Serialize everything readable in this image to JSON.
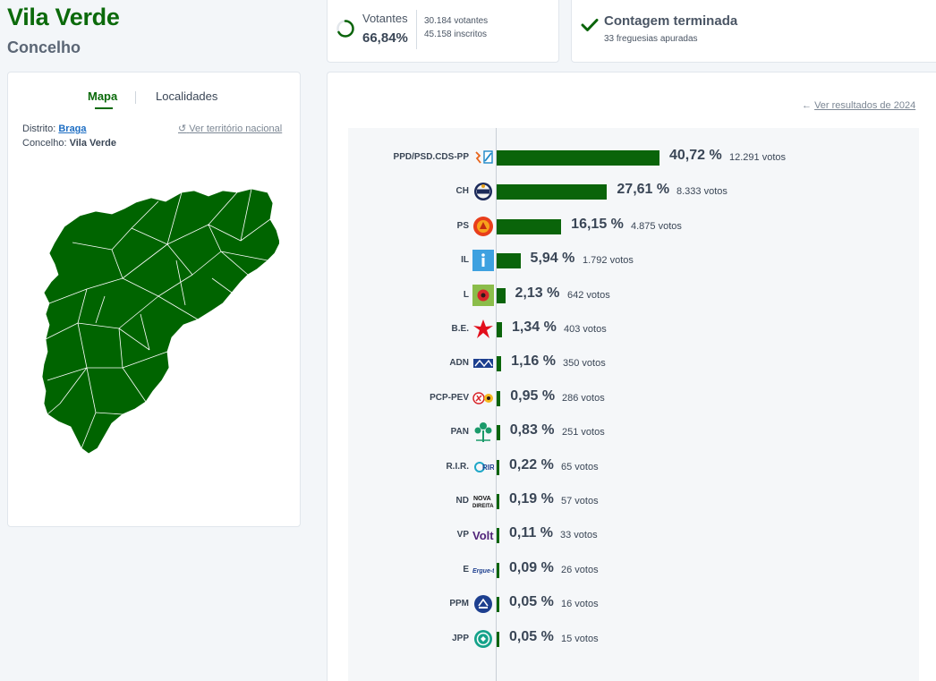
{
  "header": {
    "title": "Vila Verde",
    "subtitle": "Concelho"
  },
  "turnout": {
    "label": "Votantes",
    "percent": "66,84%",
    "percent_value": 66.84,
    "voters": "30.184 votantes",
    "registered": "45.158 inscritos"
  },
  "count_status": {
    "title": "Contagem terminada",
    "subtitle": "33 freguesias apuradas"
  },
  "map_card": {
    "tabs": [
      {
        "label": "Mapa",
        "active": true
      },
      {
        "label": "Localidades",
        "active": false
      }
    ],
    "district_label": "Distrito:",
    "district_value": "Braga",
    "municipality_label": "Concelho:",
    "municipality_value": "Vila Verde",
    "national_link": "Ver território nacional",
    "map_color": "#006400"
  },
  "results": {
    "previous_link": "Ver resultados de 2024",
    "bar_color": "#0a640a",
    "parties": [
      {
        "name": "PPD/PSD.CDS-PP",
        "percent": "40,72 %",
        "value": 40.72,
        "votes": "12.291 votos",
        "logo": "ad-logo"
      },
      {
        "name": "CH",
        "percent": "27,61 %",
        "value": 27.61,
        "votes": "8.333 votos",
        "logo": "chega-logo"
      },
      {
        "name": "PS",
        "percent": "16,15 %",
        "value": 16.15,
        "votes": "4.875 votos",
        "logo": "ps-logo"
      },
      {
        "name": "IL",
        "percent": "5,94 %",
        "value": 5.94,
        "votes": "1.792 votos",
        "logo": "il-logo"
      },
      {
        "name": "L",
        "percent": "2,13 %",
        "value": 2.13,
        "votes": "642 votos",
        "logo": "livre-logo"
      },
      {
        "name": "B.E.",
        "percent": "1,34 %",
        "value": 1.34,
        "votes": "403 votos",
        "logo": "be-logo"
      },
      {
        "name": "ADN",
        "percent": "1,16 %",
        "value": 1.16,
        "votes": "350 votos",
        "logo": "adn-logo"
      },
      {
        "name": "PCP-PEV",
        "percent": "0,95 %",
        "value": 0.95,
        "votes": "286 votos",
        "logo": "cdu-logo"
      },
      {
        "name": "PAN",
        "percent": "0,83 %",
        "value": 0.83,
        "votes": "251 votos",
        "logo": "pan-logo"
      },
      {
        "name": "R.I.R.",
        "percent": "0,22 %",
        "value": 0.22,
        "votes": "65 votos",
        "logo": "rir-logo"
      },
      {
        "name": "ND",
        "percent": "0,19 %",
        "value": 0.19,
        "votes": "57 votos",
        "logo": "nd-logo"
      },
      {
        "name": "VP",
        "percent": "0,11 %",
        "value": 0.11,
        "votes": "33 votos",
        "logo": "volt-logo"
      },
      {
        "name": "E",
        "percent": "0,09 %",
        "value": 0.09,
        "votes": "26 votos",
        "logo": "ergue-te-logo"
      },
      {
        "name": "PPM",
        "percent": "0,05 %",
        "value": 0.05,
        "votes": "16 votos",
        "logo": "ppm-logo"
      },
      {
        "name": "JPP",
        "percent": "0,05 %",
        "value": 0.05,
        "votes": "15 votos",
        "logo": "jpp-logo"
      }
    ]
  }
}
